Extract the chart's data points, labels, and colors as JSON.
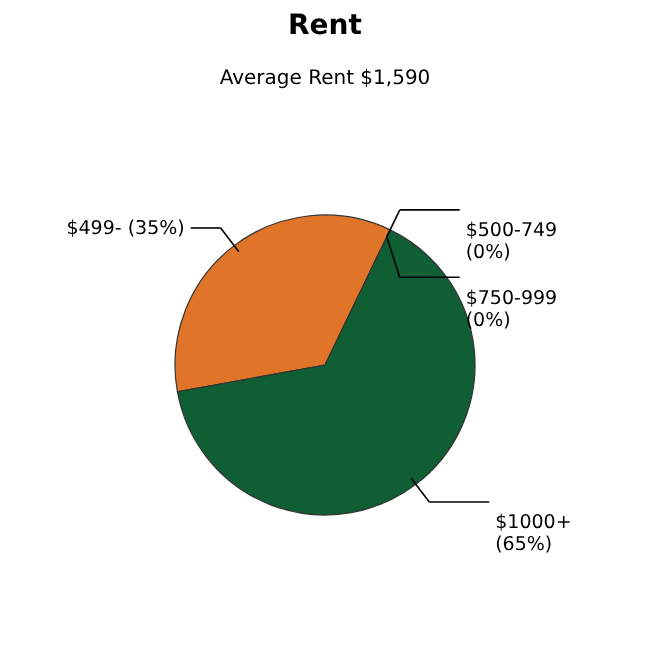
{
  "chart_data": {
    "type": "pie",
    "title": "Rent",
    "subtitle": "Average Rent  $1,590",
    "categories": [
      "$499-",
      "$500-749",
      "$750-999",
      "$1000+"
    ],
    "values": [
      35,
      0,
      0,
      65
    ],
    "value_labels": [
      "(35%)",
      "(0%)",
      "(0%)",
      "(65%)"
    ],
    "colors": [
      "#e07428",
      "#1a6b3c",
      "#1a6b3c",
      "#0f5e34"
    ]
  }
}
